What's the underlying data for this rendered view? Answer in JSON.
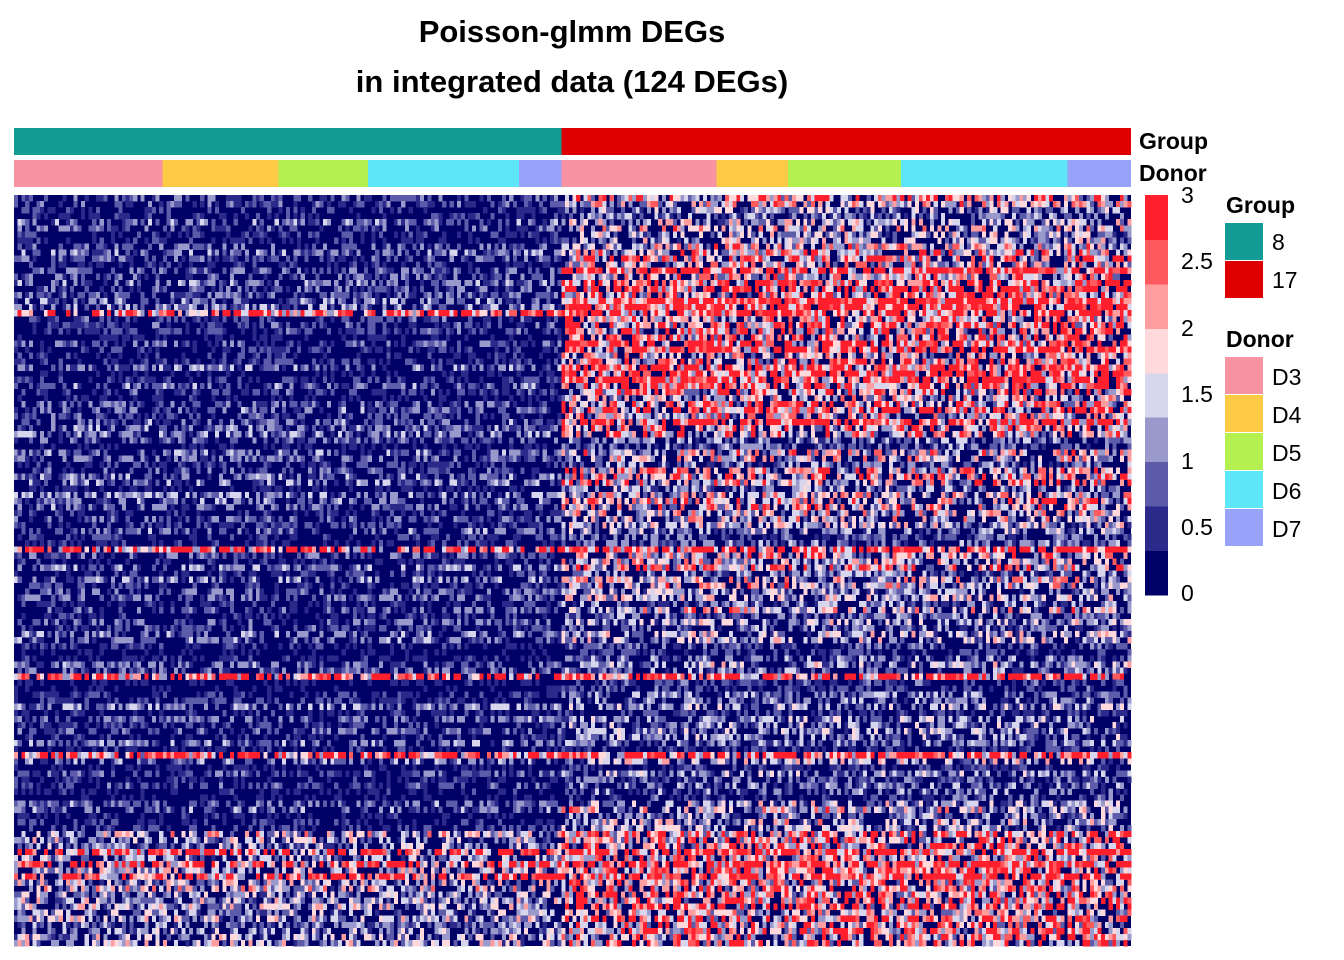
{
  "chart_data": {
    "type": "heatmap",
    "title_line1": "Poisson-glmm DEGs",
    "title_line2": "in integrated data (124 DEGs)",
    "n_genes": 124,
    "annotation_tracks": [
      "Group",
      "Donor"
    ],
    "column_groups": [
      {
        "group": "8",
        "donors": [
          {
            "donor": "D3",
            "fraction": 0.133
          },
          {
            "donor": "D4",
            "fraction": 0.104
          },
          {
            "donor": "D5",
            "fraction": 0.08
          },
          {
            "donor": "D6",
            "fraction": 0.135
          },
          {
            "donor": "D7",
            "fraction": 0.038
          }
        ]
      },
      {
        "group": "17",
        "donors": [
          {
            "donor": "D3",
            "fraction": 0.139
          },
          {
            "donor": "D4",
            "fraction": 0.064
          },
          {
            "donor": "D5",
            "fraction": 0.101
          },
          {
            "donor": "D6",
            "fraction": 0.149
          },
          {
            "donor": "D7",
            "fraction": 0.057
          }
        ]
      }
    ],
    "color_scale": {
      "min": 0,
      "max": 3,
      "ticks": [
        "0",
        "0.5",
        "1",
        "1.5",
        "2",
        "2.5",
        "3"
      ],
      "colors": [
        "#000066",
        "#2b2a8a",
        "#5d5cab",
        "#9a99cc",
        "#d8d6ec",
        "#ffd9db",
        "#ff9d9f",
        "#ff5a5e",
        "#ff1f2d"
      ]
    },
    "group_legend": {
      "title": "Group",
      "items": [
        {
          "label": "8",
          "color": "#139c95"
        },
        {
          "label": "17",
          "color": "#de0000"
        }
      ]
    },
    "donor_legend": {
      "title": "Donor",
      "items": [
        {
          "label": "D3",
          "color": "#f793a2"
        },
        {
          "label": "D4",
          "color": "#fcca45"
        },
        {
          "label": "D5",
          "color": "#b4f050"
        },
        {
          "label": "D6",
          "color": "#5ce6f8"
        },
        {
          "label": "D7",
          "color": "#98a2f8"
        }
      ]
    }
  }
}
